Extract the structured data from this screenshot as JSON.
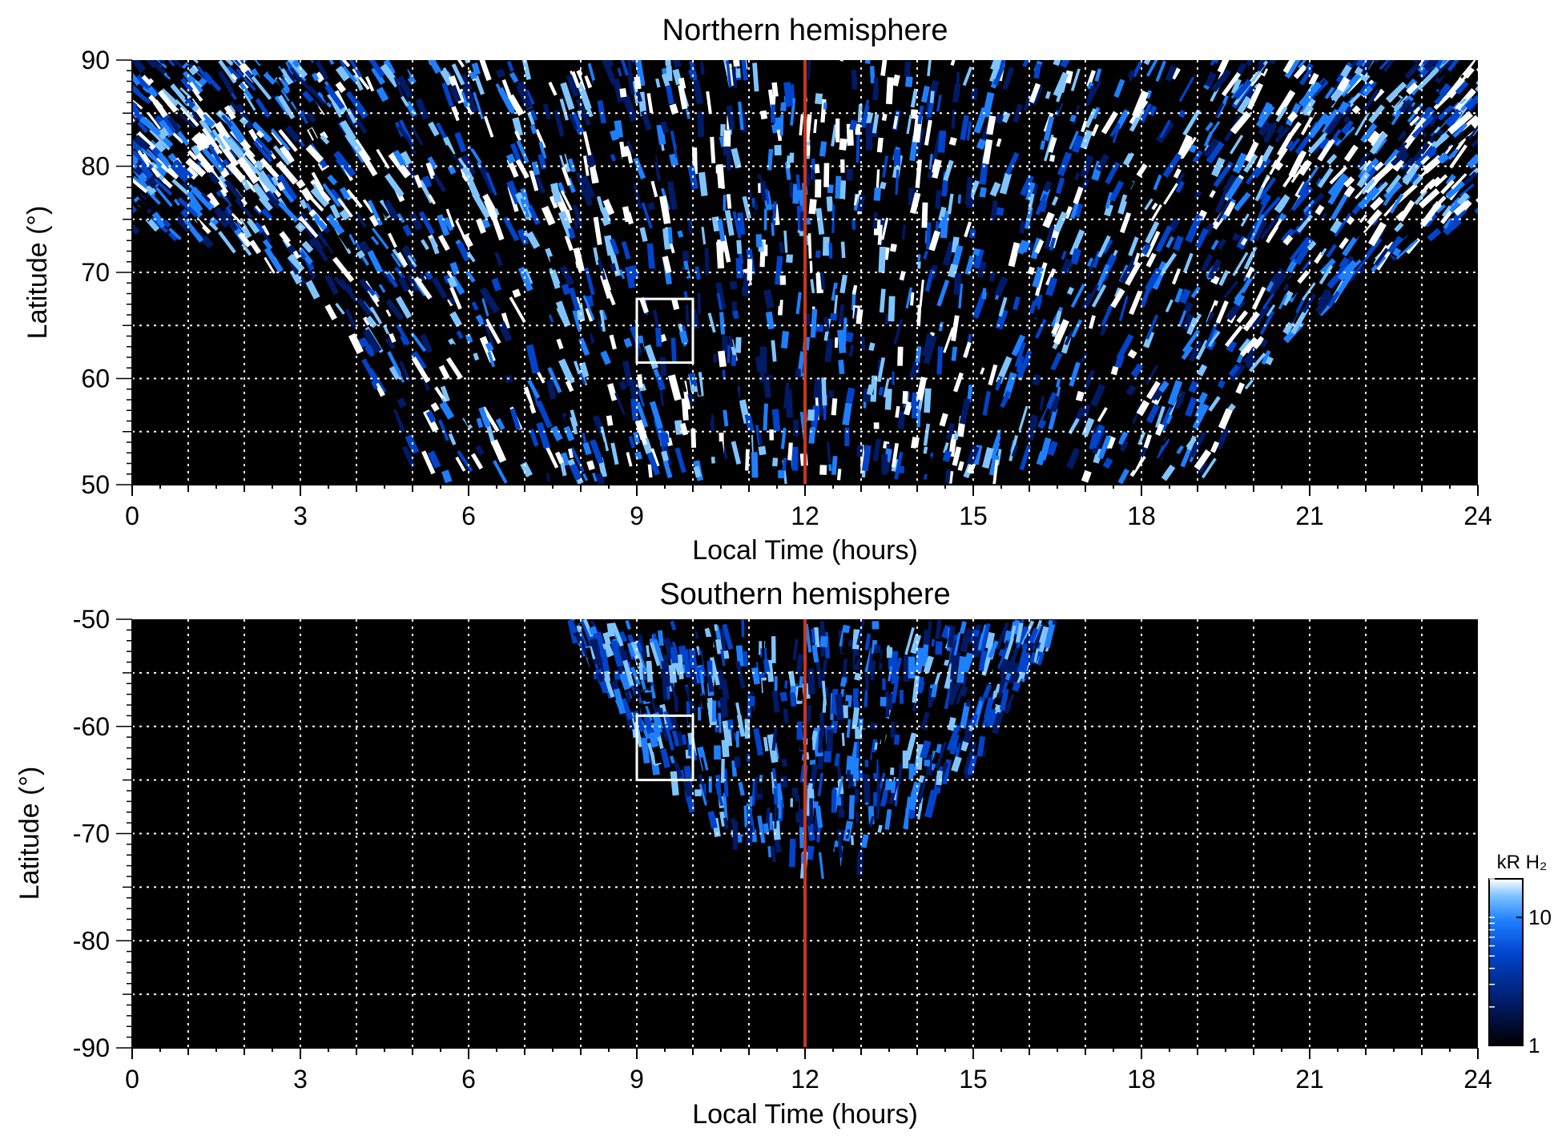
{
  "chart_data": [
    {
      "type": "heatmap",
      "title": "Northern hemisphere",
      "xlabel": "Local Time (hours)",
      "ylabel": "Latitude (°)",
      "xlim": [
        0,
        24
      ],
      "ylim": [
        50,
        90
      ],
      "x_ticks": [
        0,
        3,
        6,
        9,
        12,
        15,
        18,
        21,
        24
      ],
      "y_ticks": [
        50,
        60,
        70,
        80,
        90
      ],
      "x_grid": [
        1,
        2,
        3,
        4,
        5,
        6,
        7,
        8,
        9,
        10,
        11,
        13,
        14,
        15,
        16,
        17,
        18,
        19,
        20,
        21,
        22,
        23
      ],
      "y_grid": [
        55,
        60,
        65,
        70,
        75,
        80,
        85
      ],
      "grid": true,
      "noon_line": 12,
      "highlight_box": {
        "x": [
          9,
          10
        ],
        "y": [
          61.5,
          67.5
        ]
      },
      "coverage_edge_lat": [
        {
          "lt": 0.0,
          "lat": 73.5
        },
        {
          "lt": 1.0,
          "lat": 73.0
        },
        {
          "lt": 2.0,
          "lat": 71.5
        },
        {
          "lt": 3.0,
          "lat": 68.5
        },
        {
          "lt": 4.0,
          "lat": 63.0
        },
        {
          "lt": 4.5,
          "lat": 57.0
        },
        {
          "lt": 4.8,
          "lat": 50.0
        },
        {
          "lt": 19.2,
          "lat": 50.0
        },
        {
          "lt": 19.5,
          "lat": 56.0
        },
        {
          "lt": 20.0,
          "lat": 60.0
        },
        {
          "lt": 21.0,
          "lat": 65.0
        },
        {
          "lt": 22.0,
          "lat": 69.5
        },
        {
          "lt": 23.0,
          "lat": 72.5
        },
        {
          "lt": 24.0,
          "lat": 74.0
        }
      ],
      "bright_regions": [
        {
          "lt": 1.5,
          "lat": 81.0,
          "intensity": 0.95
        },
        {
          "lt": 3.5,
          "lat": 78.0,
          "intensity": 0.9
        },
        {
          "lt": 7.0,
          "lat": 76.0,
          "intensity": 0.75
        },
        {
          "lt": 12.0,
          "lat": 83.0,
          "intensity": 0.9
        },
        {
          "lt": 20.0,
          "lat": 80.0,
          "intensity": 0.8
        },
        {
          "lt": 22.5,
          "lat": 77.0,
          "intensity": 0.9
        }
      ]
    },
    {
      "type": "heatmap",
      "title": "Southern hemisphere",
      "xlabel": "Local Time (hours)",
      "ylabel": "Latitude (°)",
      "xlim": [
        0,
        24
      ],
      "ylim": [
        -90,
        -50
      ],
      "x_ticks": [
        0,
        3,
        6,
        9,
        12,
        15,
        18,
        21,
        24
      ],
      "y_ticks": [
        -90,
        -80,
        -70,
        -60,
        -50
      ],
      "x_grid": [
        1,
        2,
        3,
        4,
        5,
        6,
        7,
        8,
        9,
        10,
        11,
        13,
        14,
        15,
        16,
        17,
        18,
        19,
        20,
        21,
        22,
        23
      ],
      "y_grid": [
        -85,
        -80,
        -75,
        -70,
        -65,
        -60,
        -55
      ],
      "grid": true,
      "noon_line": 12,
      "highlight_box": {
        "x": [
          9,
          10
        ],
        "y": [
          -65,
          -59
        ]
      },
      "coverage_edge_lat": [
        {
          "lt": 7.8,
          "lat": -50.0
        },
        {
          "lt": 8.5,
          "lat": -57.0
        },
        {
          "lt": 9.0,
          "lat": -61.0
        },
        {
          "lt": 10.0,
          "lat": -67.0
        },
        {
          "lt": 11.0,
          "lat": -71.0
        },
        {
          "lt": 12.0,
          "lat": -72.5
        },
        {
          "lt": 13.0,
          "lat": -71.5
        },
        {
          "lt": 14.0,
          "lat": -68.0
        },
        {
          "lt": 15.0,
          "lat": -63.0
        },
        {
          "lt": 16.0,
          "lat": -55.0
        },
        {
          "lt": 16.5,
          "lat": -50.0
        }
      ]
    }
  ],
  "colorbar": {
    "label": "kR H₂",
    "scale": "log",
    "range": [
      1,
      20
    ],
    "ticks": [
      {
        "value": 10,
        "label": "10"
      },
      {
        "value": 1,
        "label": "1"
      }
    ],
    "colors": [
      "#000000",
      "#001a66",
      "#0044cc",
      "#1e7fff",
      "#7fc4ff",
      "#ffffff"
    ]
  },
  "colors": {
    "noon_line": "#c8361b",
    "grid": "#ffffff",
    "box": "#ffffff",
    "background": "#000000"
  }
}
